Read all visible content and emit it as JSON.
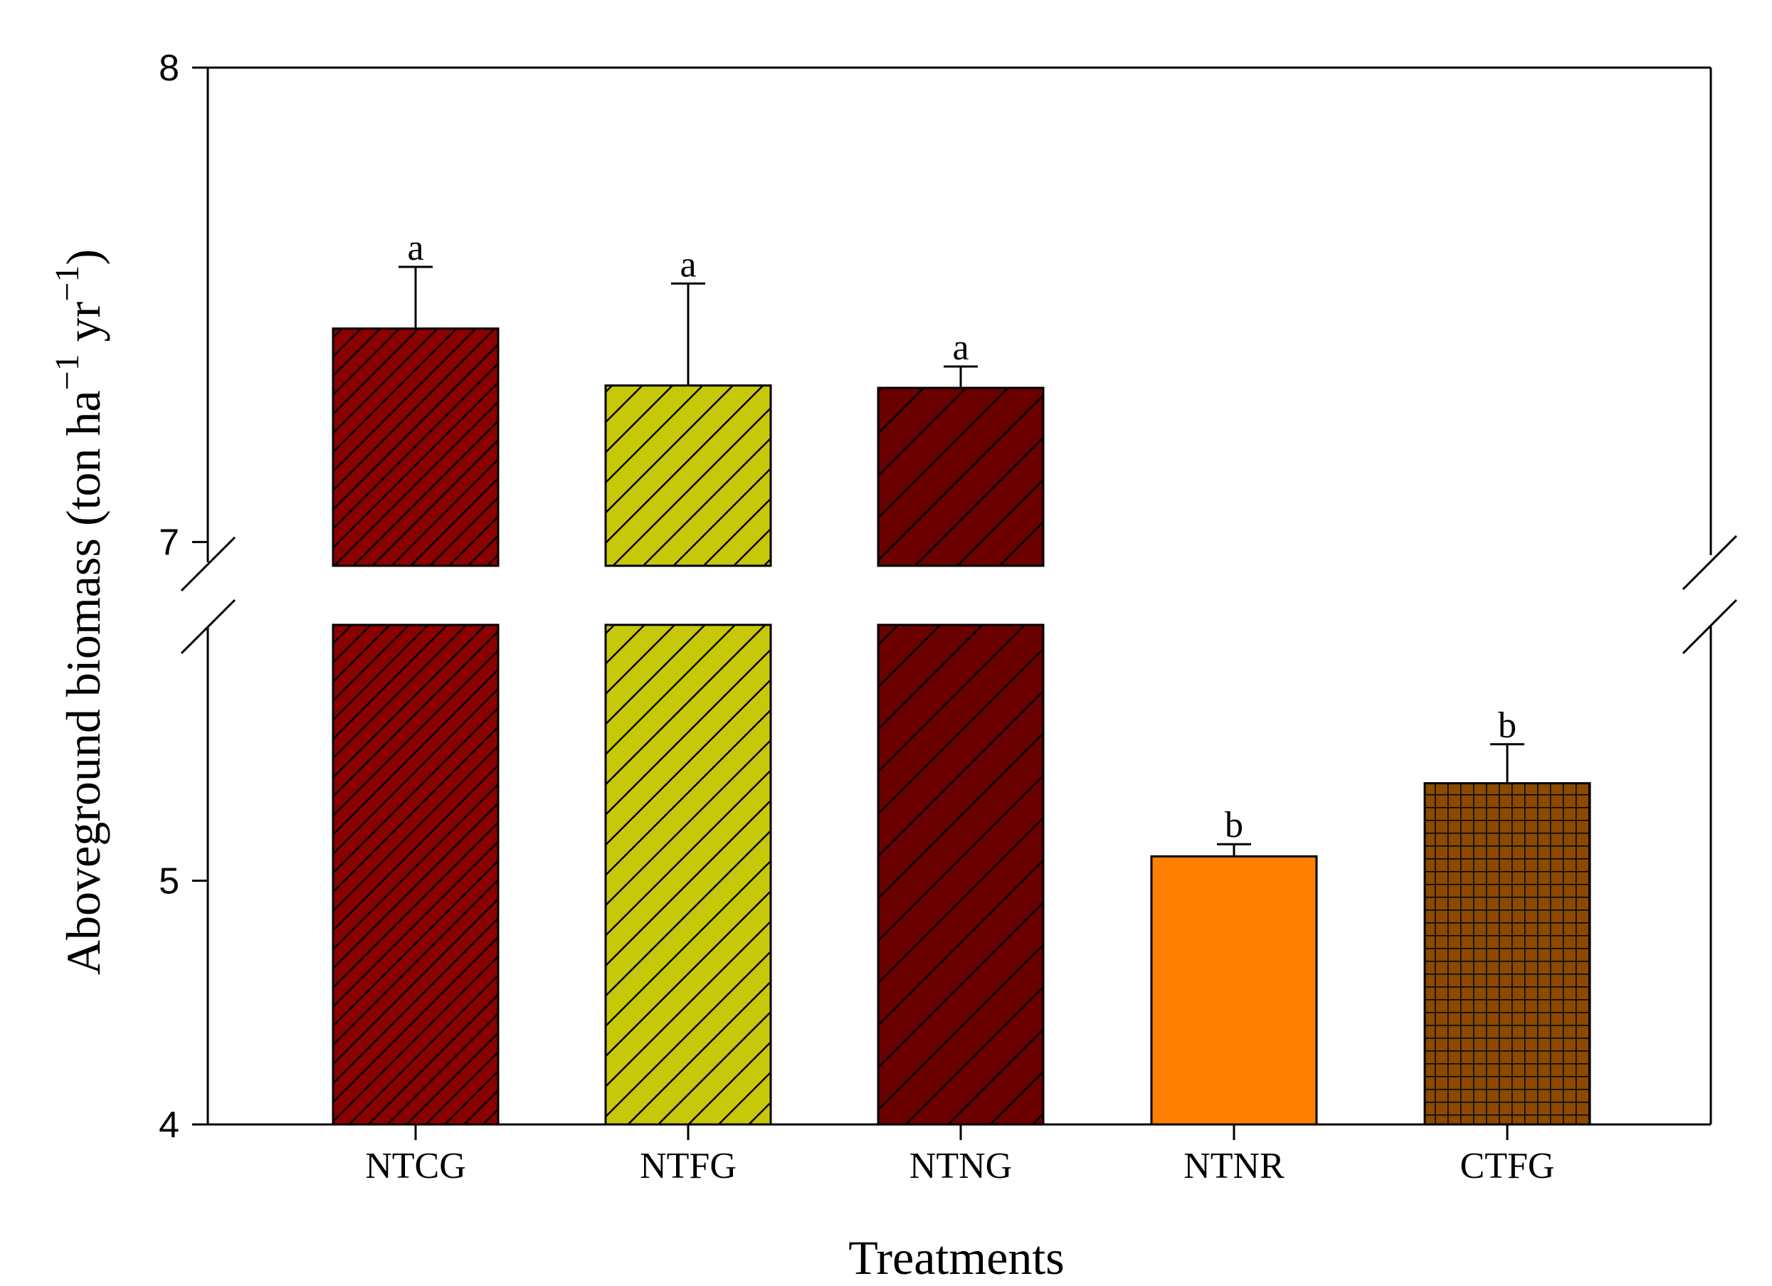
{
  "chart_data": {
    "type": "bar",
    "xlabel": "Treatments",
    "ylabel": "Aboveground biomass (ton ha",
    "ylabel_sup1": "−1",
    "ylabel_mid": " yr",
    "ylabel_sup2": "−1",
    "ylabel_end": ")",
    "axis_break": {
      "lower_range": [
        4,
        6.05
      ],
      "upper_range": [
        6.95,
        8
      ]
    },
    "yticks": [
      {
        "value": 4,
        "label": "4"
      },
      {
        "value": 5,
        "label": "5"
      },
      {
        "value": 7,
        "label": "7"
      },
      {
        "value": 8,
        "label": "8"
      }
    ],
    "grid": false,
    "categories": [
      "NTCG",
      "NTFG",
      "NTNG",
      "NTNR",
      "CTFG"
    ],
    "values": [
      7.45,
      7.33,
      7.325,
      5.1,
      5.4
    ],
    "errors": [
      0.13,
      0.215,
      0.045,
      0.05,
      0.16
    ],
    "letters": [
      "a",
      "a",
      "a",
      "b",
      "b"
    ],
    "colors": [
      "#8b0000",
      "#c8c80a",
      "#6a0000",
      "#ff8000",
      "#8a4a00"
    ],
    "patterns": [
      "fine-diagonal",
      "medium-diagonal",
      "wide-diagonal",
      "none",
      "grid"
    ]
  }
}
